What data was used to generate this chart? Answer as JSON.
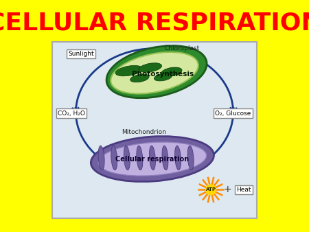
{
  "title": "CELLULAR RESPIRATION",
  "title_color": "#FF0000",
  "title_fontsize": 26,
  "background_color": "#FFFF00",
  "panel_background": "#dde8f0",
  "arrow_color": "#1a3a8a",
  "sunlight": "Sunlight",
  "chloroplast": "Chloroplast",
  "photosynthesis": "Photosynthesis",
  "co2_h2o": "CO₂, H₂O",
  "o2_glucose": "O₂, Glucose",
  "mitochondrion": "Mitochondrion",
  "cellular_resp": "Cellular respiration",
  "atp": "ATP",
  "plus": "+",
  "heat": "Heat"
}
